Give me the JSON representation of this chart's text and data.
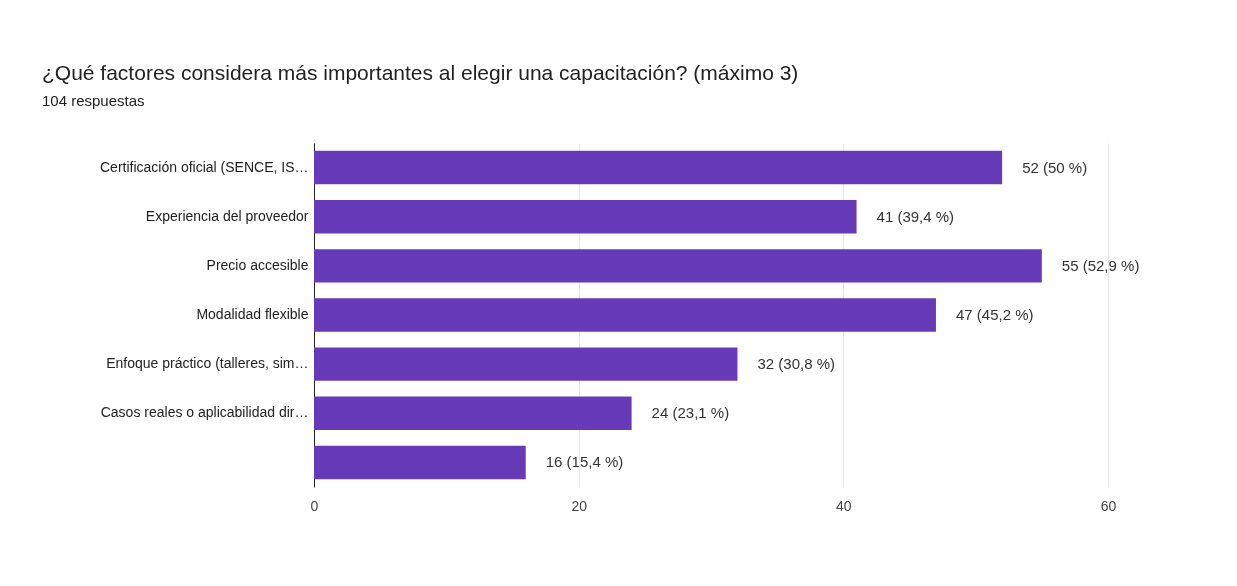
{
  "chart_data": {
    "type": "bar",
    "orientation": "horizontal",
    "title": "¿Qué factores considera más importantes al elegir una capacitación? (máximo 3)",
    "subtitle": "104 respuestas",
    "categories": [
      "Certificación oficial (SENCE, IS…",
      "Experiencia del proveedor",
      "Precio accesible",
      "Modalidad flexible",
      "Enfoque práctico (talleres, sim…",
      "Casos reales o aplicabilidad dir…",
      null
    ],
    "values": [
      52,
      41,
      55,
      47,
      32,
      24,
      16
    ],
    "value_labels": [
      "52 (50 %)",
      "41 (39,4 %)",
      "55 (52,9 %)",
      "47 (45,2 %)",
      "32 (30,8 %)",
      "24 (23,1 %)",
      "16 (15,4 %)"
    ],
    "color": "#673ab7",
    "xlim": [
      0,
      60
    ],
    "xticks": [
      0,
      20,
      40,
      60
    ],
    "grid": "x"
  }
}
